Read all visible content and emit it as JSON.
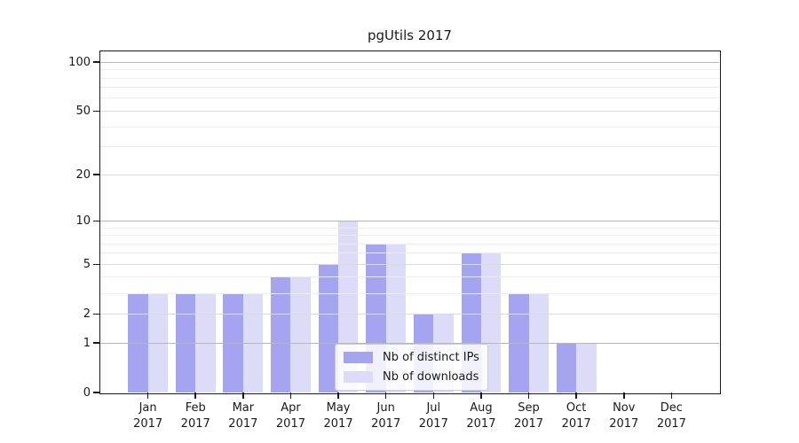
{
  "figure": {
    "background": "#ffffff",
    "text_color": "#1a1a1a"
  },
  "chart_data": {
    "type": "bar",
    "title": "pgUtils 2017",
    "categories_month": [
      "Jan",
      "Feb",
      "Mar",
      "Apr",
      "May",
      "Jun",
      "Jul",
      "Aug",
      "Sep",
      "Oct",
      "Nov",
      "Dec"
    ],
    "categories_year": "2017",
    "series": [
      {
        "name": "Nb of distinct IPs",
        "color": "#a4a4f0",
        "values": [
          3,
          3,
          3,
          4,
          5,
          7,
          2,
          6,
          3,
          1,
          0,
          0
        ]
      },
      {
        "name": "Nb of downloads",
        "color": "#dcdcf8",
        "values": [
          3,
          3,
          3,
          4,
          10,
          7,
          2,
          6,
          3,
          1,
          0,
          0
        ]
      }
    ],
    "yscale": "log1p",
    "ylim": [
      0,
      118
    ],
    "y_tick_values": [
      0,
      1,
      2,
      5,
      10,
      20,
      50,
      100
    ],
    "grid": {
      "decade_lines": [
        1,
        10,
        100
      ],
      "mid_lines": [
        2,
        5,
        20,
        50
      ],
      "minor_lines": [
        3,
        4,
        6,
        7,
        8,
        9,
        30,
        40,
        60,
        70,
        80,
        90
      ],
      "decade_color": "#b6b6b6",
      "mid_color": "#d9d9d9",
      "minor_color": "#ececec"
    },
    "legend": {
      "position": "lower center",
      "background": "#ffffff",
      "border_color": "#cccccc"
    }
  }
}
